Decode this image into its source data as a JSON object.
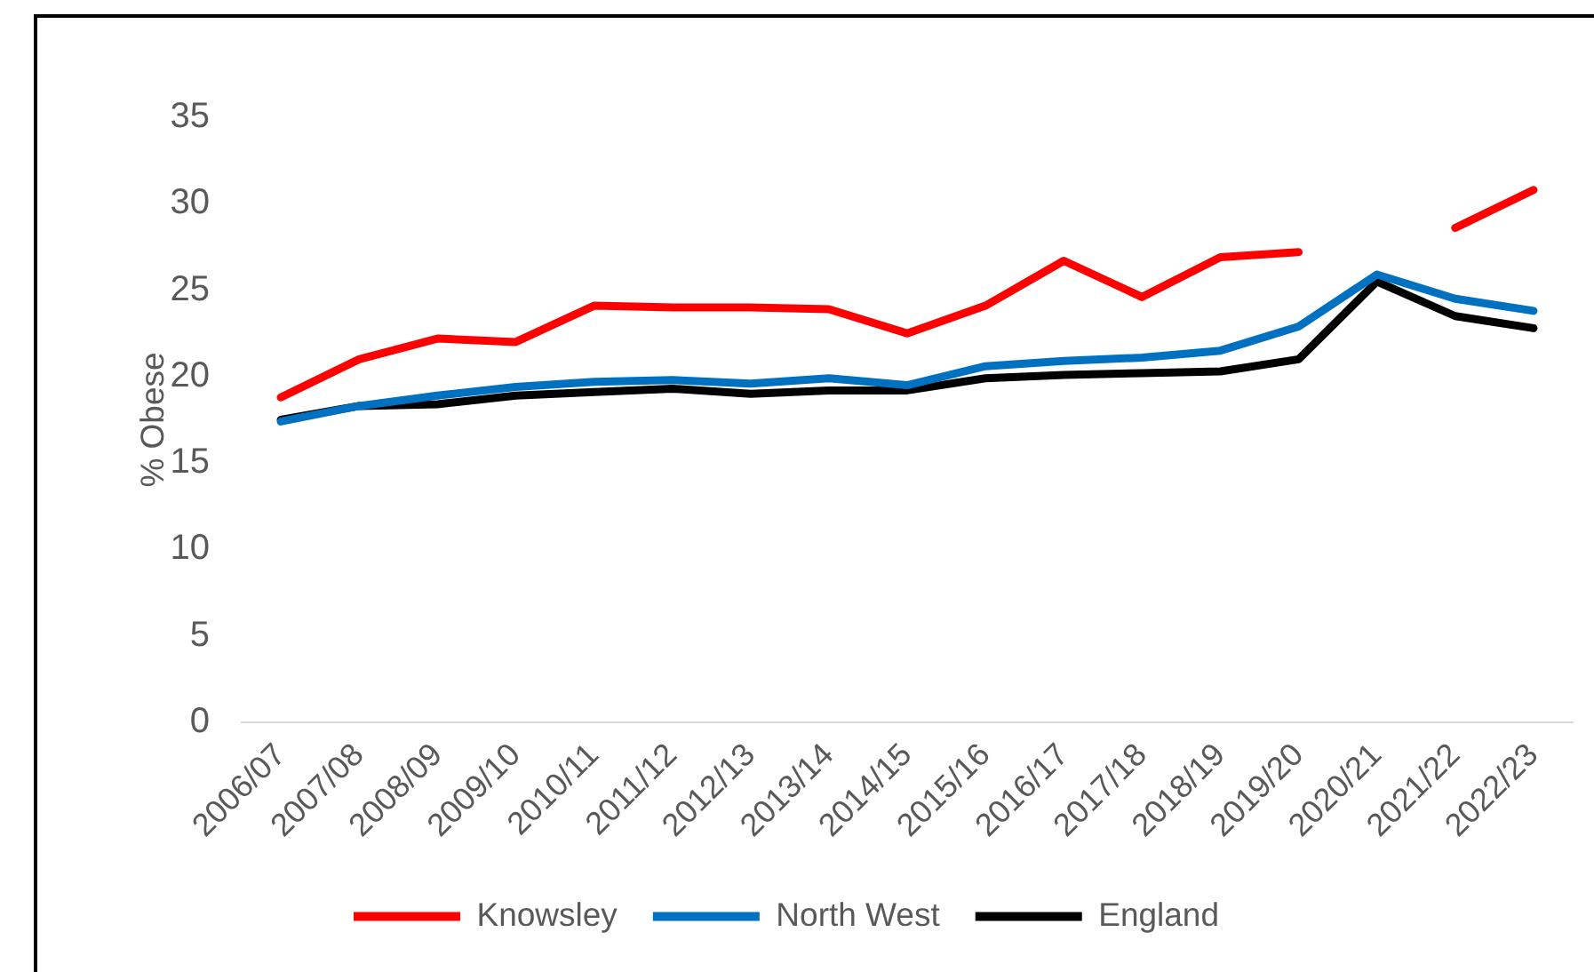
{
  "chart_data": {
    "type": "line",
    "ylabel": "% Obese",
    "categories": [
      "2006/07",
      "2007/08",
      "2008/09",
      "2009/10",
      "2010/11",
      "2011/12",
      "2012/13",
      "2013/14",
      "2014/15",
      "2015/16",
      "2016/17",
      "2017/18",
      "2018/19",
      "2019/20",
      "2020/21",
      "2021/22",
      "2022/23"
    ],
    "series": [
      {
        "name": "Knowsley",
        "color": "#ff0000",
        "values": [
          18.8,
          21.0,
          22.2,
          22.0,
          24.1,
          24.0,
          24.0,
          23.9,
          22.5,
          24.1,
          26.7,
          24.6,
          26.9,
          27.2,
          null,
          28.6,
          30.8
        ]
      },
      {
        "name": "North West",
        "color": "#0070c0",
        "values": [
          17.4,
          18.3,
          18.9,
          19.4,
          19.7,
          19.8,
          19.6,
          19.9,
          19.5,
          20.6,
          20.9,
          21.1,
          21.5,
          22.9,
          25.9,
          24.5,
          23.8
        ]
      },
      {
        "name": "England",
        "color": "#000000",
        "values": [
          17.5,
          18.3,
          18.4,
          18.9,
          19.1,
          19.3,
          19.0,
          19.2,
          19.2,
          19.9,
          20.1,
          20.2,
          20.3,
          21.0,
          25.5,
          23.5,
          22.8
        ]
      }
    ],
    "ylim": [
      0,
      35
    ],
    "yticks": [
      0,
      5,
      10,
      15,
      20,
      25,
      30,
      35
    ],
    "legend": "bottom"
  }
}
